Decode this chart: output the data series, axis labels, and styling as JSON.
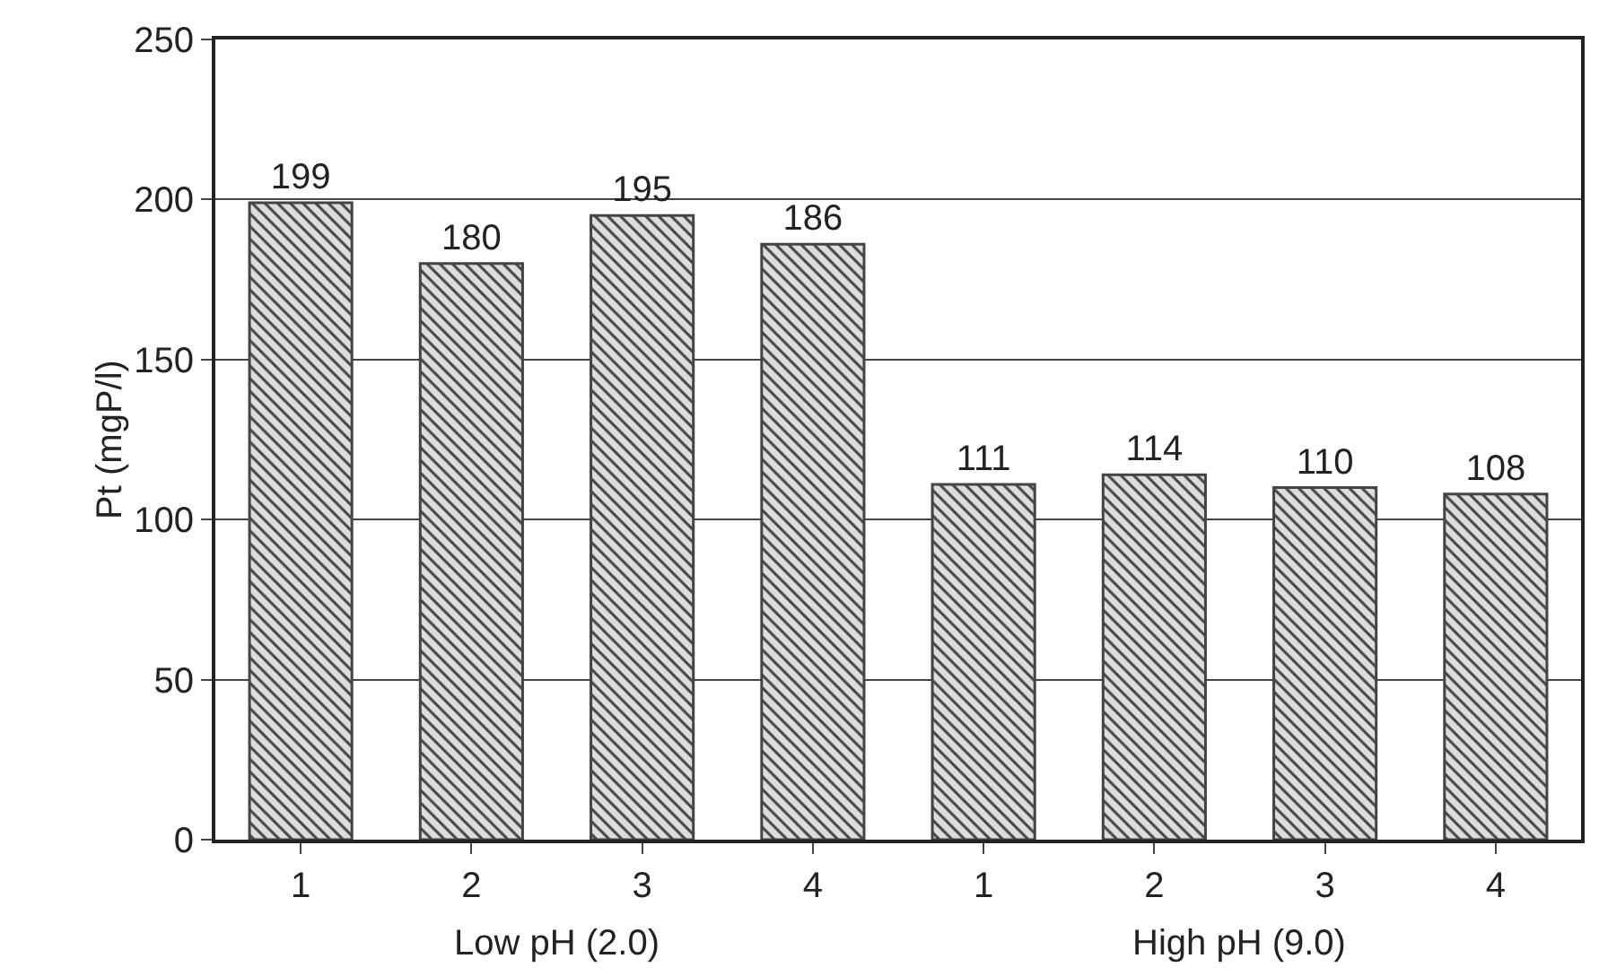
{
  "chart_data": {
    "type": "bar",
    "ylabel": "Pt (mgP/l)",
    "categories": [
      "1",
      "2",
      "3",
      "4",
      "1",
      "2",
      "3",
      "4"
    ],
    "values": [
      199,
      180,
      195,
      186,
      111,
      114,
      110,
      108
    ],
    "color": "#444444",
    "data_labels": true,
    "grid": "y",
    "ylim": [
      0,
      250
    ],
    "yticks": [
      0,
      50,
      100,
      150,
      200,
      250
    ],
    "annotations": [
      "Low pH (2.0)",
      "High pH (9.0)"
    ]
  }
}
